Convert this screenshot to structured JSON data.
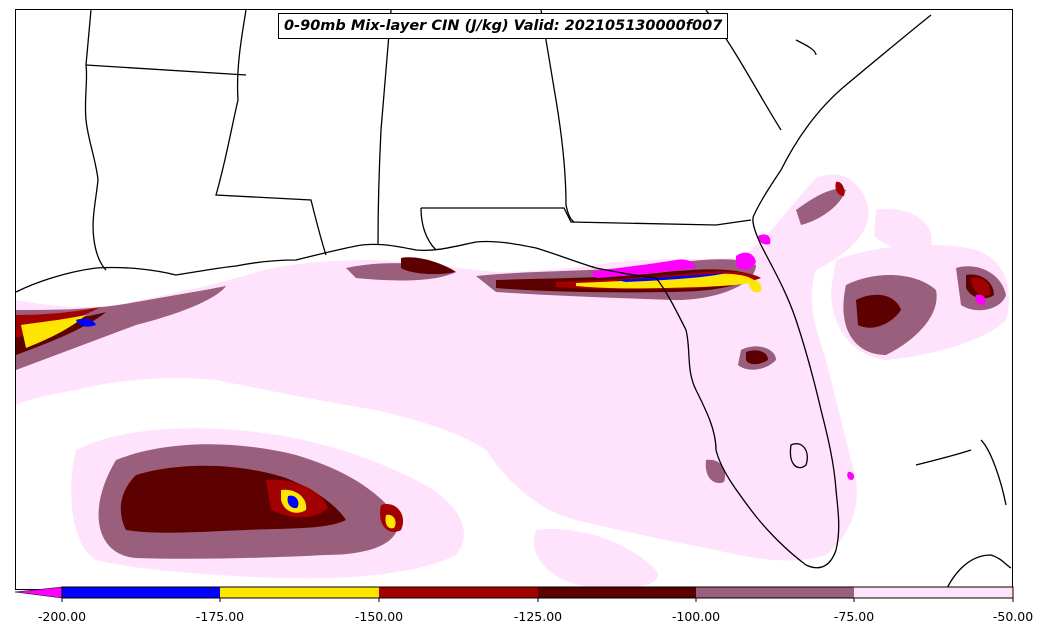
{
  "title": "0-90mb Mix-layer CIN (J/kg) Valid: 202105130000f007",
  "colorbar": {
    "ticks": [
      "-200.00",
      "-175.00",
      "-150.00",
      "-125.00",
      "-100.00",
      "-75.00",
      "-50.00"
    ],
    "extend_color": "#ff00ff",
    "bins": [
      {
        "color": "#0000ff"
      },
      {
        "color": "#ffe600"
      },
      {
        "color": "#a30000"
      },
      {
        "color": "#5c0000"
      },
      {
        "color": "#9a5f7d"
      },
      {
        "color": "#ffe2fb"
      }
    ]
  },
  "colors": {
    "magenta": "#ff00ff",
    "blue": "#0000ff",
    "yellow": "#ffe600",
    "red": "#a30000",
    "darkred": "#5c0000",
    "mauve": "#9a5f7d",
    "pink": "#ffe2fb",
    "border": "#000000"
  }
}
